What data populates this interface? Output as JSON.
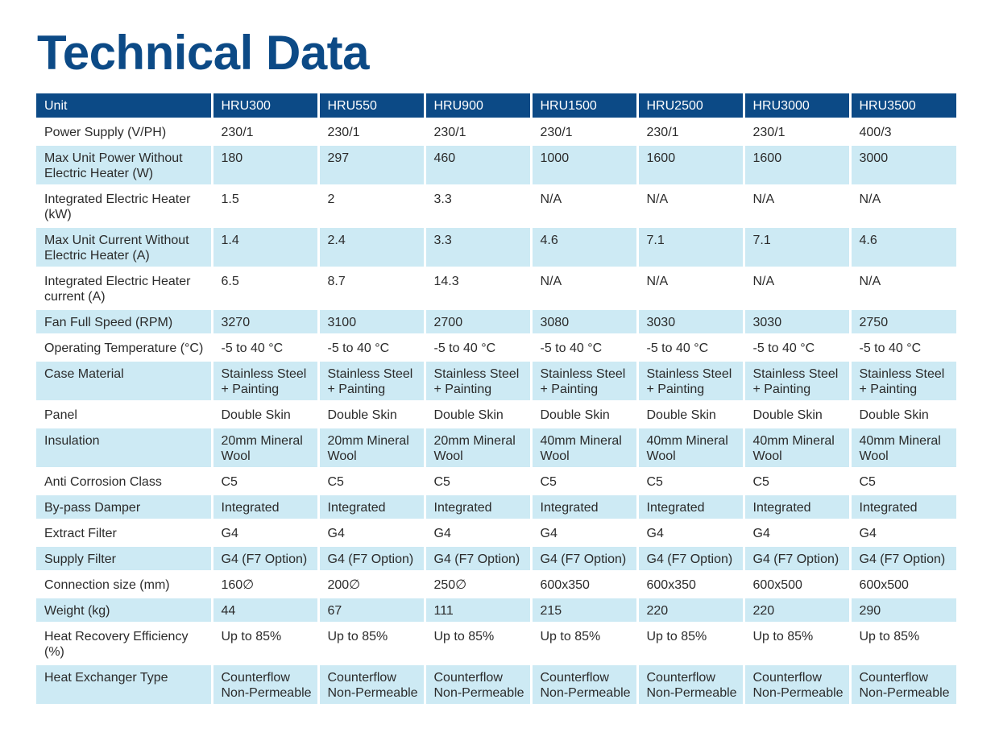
{
  "page": {
    "title": "Technical Data"
  },
  "table": {
    "headers": [
      "Unit",
      "HRU300",
      "HRU550",
      "HRU900",
      "HRU1500",
      "HRU2500",
      "HRU3000",
      "HRU3500"
    ],
    "rows": [
      [
        "Power Supply (V/PH)",
        "230/1",
        "230/1",
        "230/1",
        "230/1",
        "230/1",
        "230/1",
        "400/3"
      ],
      [
        "Max Unit Power Without Electric Heater (W)",
        "180",
        "297",
        "460",
        "1000",
        "1600",
        "1600",
        "3000"
      ],
      [
        "Integrated Electric Heater (kW)",
        "1.5",
        "2",
        "3.3",
        "N/A",
        "N/A",
        "N/A",
        "N/A"
      ],
      [
        "Max Unit Current Without Electric Heater (A)",
        "1.4",
        "2.4",
        "3.3",
        "4.6",
        "7.1",
        "7.1",
        "4.6"
      ],
      [
        "Integrated Electric Heater current (A)",
        "6.5",
        "8.7",
        "14.3",
        "N/A",
        "N/A",
        "N/A",
        "N/A"
      ],
      [
        "Fan Full Speed (RPM)",
        "3270",
        "3100",
        "2700",
        "3080",
        "3030",
        "3030",
        "2750"
      ],
      [
        "Operating Temperature (°C)",
        "-5 to 40 °C",
        "-5 to 40 °C",
        "-5 to 40 °C",
        "-5 to 40 °C",
        "-5 to 40 °C",
        "-5 to 40 °C",
        "-5 to 40 °C"
      ],
      [
        "Case Material",
        "Stainless Steel + Painting",
        "Stainless Steel + Painting",
        "Stainless Steel + Painting",
        "Stainless Steel + Painting",
        "Stainless Steel + Painting",
        "Stainless Steel + Painting",
        "Stainless Steel + Painting"
      ],
      [
        "Panel",
        "Double Skin",
        "Double Skin",
        "Double Skin",
        "Double Skin",
        "Double Skin",
        "Double Skin",
        "Double Skin"
      ],
      [
        "Insulation",
        "20mm Mineral Wool",
        "20mm Mineral Wool",
        "20mm Mineral Wool",
        "40mm Mineral Wool",
        "40mm Mineral Wool",
        "40mm Mineral Wool",
        "40mm Mineral Wool"
      ],
      [
        "Anti Corrosion Class",
        "C5",
        "C5",
        "C5",
        "C5",
        "C5",
        "C5",
        "C5"
      ],
      [
        "By-pass Damper",
        "Integrated",
        "Integrated",
        "Integrated",
        "Integrated",
        "Integrated",
        "Integrated",
        "Integrated"
      ],
      [
        "Extract Filter",
        "G4",
        "G4",
        "G4",
        "G4",
        "G4",
        "G4",
        "G4"
      ],
      [
        "Supply Filter",
        "G4 (F7 Option)",
        "G4 (F7 Option)",
        "G4 (F7 Option)",
        "G4 (F7 Option)",
        "G4 (F7 Option)",
        "G4 (F7 Option)",
        "G4 (F7 Option)"
      ],
      [
        "Connection size (mm)",
        "160∅",
        "200∅",
        "250∅",
        "600x350",
        "600x350",
        "600x500",
        "600x500"
      ],
      [
        "Weight (kg)",
        "44",
        "67",
        "111",
        "215",
        "220",
        "220",
        "290"
      ],
      [
        "Heat Recovery Efficiency (%)",
        "Up to 85%",
        "Up to 85%",
        "Up to 85%",
        "Up to 85%",
        "Up to 85%",
        "Up to 85%",
        "Up to 85%"
      ],
      [
        "Heat Exchanger Type",
        "Counterflow Non-Permeable",
        "Counterflow Non-Permeable",
        "Counterflow Non-Permeable",
        "Counterflow Non-Permeable",
        "Counterflow Non-Permeable",
        "Counterflow Non-Permeable",
        "Counterflow Non-Permeable"
      ]
    ]
  },
  "colors": {
    "title": "#0c4a86",
    "header_bg": "#0c4a86",
    "header_text": "#ffffff",
    "shaded_row": "#cdeaf4",
    "plain_row": "#ffffff",
    "body_text": "#2b2b2b"
  }
}
